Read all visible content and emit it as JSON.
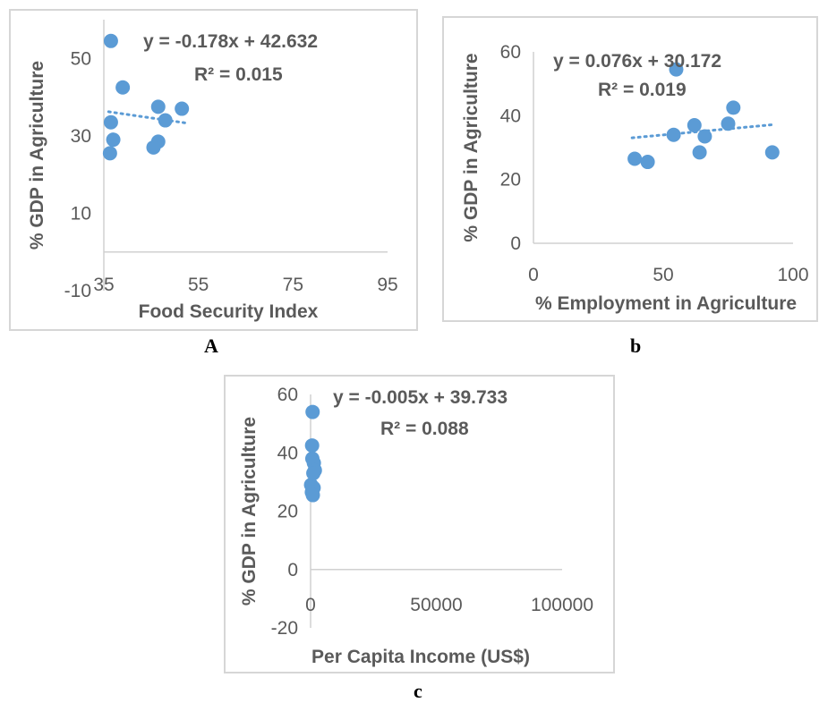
{
  "chart_data": [
    {
      "type": "scatter",
      "caption": "A",
      "xlabel": "Food Security Index",
      "ylabel": "% GDP in Agriculture",
      "xlim": [
        35,
        95
      ],
      "ylim": [
        -10,
        60
      ],
      "xticks": [
        35,
        55,
        75,
        95
      ],
      "yticks": [
        -10,
        10,
        30,
        50
      ],
      "equation": "y = -0.178x + 42.632",
      "r2": "R² = 0.015",
      "trendline": {
        "slope": -0.178,
        "intercept": 42.632,
        "x_range": [
          36,
          52.5
        ]
      },
      "color": "#5b9bd5",
      "points": [
        {
          "x": 36.5,
          "y": 54.5
        },
        {
          "x": 39.0,
          "y": 42.5
        },
        {
          "x": 36.5,
          "y": 33.5
        },
        {
          "x": 37.0,
          "y": 29.0
        },
        {
          "x": 36.3,
          "y": 25.5
        },
        {
          "x": 46.5,
          "y": 37.5
        },
        {
          "x": 48.0,
          "y": 34.0
        },
        {
          "x": 51.5,
          "y": 37.0
        },
        {
          "x": 46.5,
          "y": 28.5
        },
        {
          "x": 45.5,
          "y": 27.0
        }
      ]
    },
    {
      "type": "scatter",
      "caption": "b",
      "xlabel": "% Employment in Agriculture",
      "ylabel": "% GDP in Agriculture",
      "xlim": [
        0,
        100
      ],
      "ylim": [
        0,
        60
      ],
      "xticks": [
        0,
        50,
        100
      ],
      "yticks": [
        0,
        20,
        40,
        60
      ],
      "equation": "y = 0.076x + 30.172",
      "r2": "R² = 0.019",
      "trendline": {
        "slope": 0.076,
        "intercept": 30.172,
        "x_range": [
          38,
          92
        ]
      },
      "color": "#5b9bd5",
      "points": [
        {
          "x": 39,
          "y": 26.5
        },
        {
          "x": 44,
          "y": 25.5
        },
        {
          "x": 54,
          "y": 34.0
        },
        {
          "x": 55,
          "y": 54.5
        },
        {
          "x": 62,
          "y": 37.0
        },
        {
          "x": 64,
          "y": 28.5
        },
        {
          "x": 66,
          "y": 33.5
        },
        {
          "x": 75,
          "y": 37.5
        },
        {
          "x": 77,
          "y": 42.5
        },
        {
          "x": 92,
          "y": 28.5
        }
      ]
    },
    {
      "type": "scatter",
      "caption": "c",
      "xlabel": "Per Capita Income (US$)",
      "ylabel": "% GDP in Agriculture",
      "xlim": [
        0,
        100000
      ],
      "ylim": [
        -20,
        60
      ],
      "xticks": [
        0,
        50000,
        100000
      ],
      "yticks": [
        -20,
        0,
        20,
        40,
        60
      ],
      "equation": "y = -0.005x + 39.733",
      "r2": "R² = 0.088",
      "trendline": null,
      "color": "#5b9bd5",
      "points": [
        {
          "x": 800,
          "y": 54.0
        },
        {
          "x": 600,
          "y": 42.5
        },
        {
          "x": 700,
          "y": 38.0
        },
        {
          "x": 1300,
          "y": 36.5
        },
        {
          "x": 1700,
          "y": 34.0
        },
        {
          "x": 1100,
          "y": 33.0
        },
        {
          "x": 200,
          "y": 29.0
        },
        {
          "x": 1200,
          "y": 28.0
        },
        {
          "x": 500,
          "y": 26.5
        },
        {
          "x": 900,
          "y": 25.5
        }
      ]
    }
  ]
}
